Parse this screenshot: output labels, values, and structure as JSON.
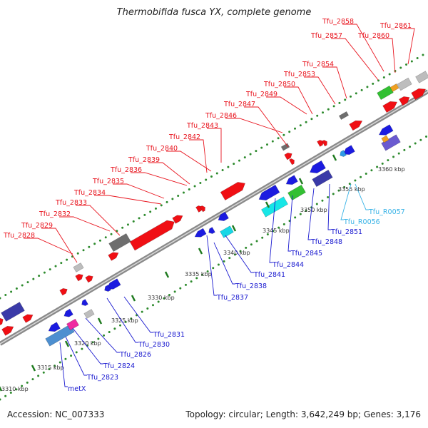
{
  "title": "Thermobifida fusca YX, complete genome",
  "footer": {
    "accession": "Accession: NC_007333",
    "summary": "Topology: circular; Length: 3,642,249 bp; Genes: 3,176"
  },
  "colors": {
    "forward_label": "#e8141e",
    "reverse_label": "#1a1ad0",
    "rna_label": "#36b2e6",
    "dots": "#2d8a2d",
    "tick": "#1f7a1f",
    "backbone": "#8a8a8a"
  },
  "ticks": [
    {
      "label": "3310 kbp"
    },
    {
      "label": "3315 kbp"
    },
    {
      "label": "3320 kbp"
    },
    {
      "label": "3325 kbp"
    },
    {
      "label": "3330 kbp"
    },
    {
      "label": "3335 kbp"
    },
    {
      "label": "3340 kbp"
    },
    {
      "label": "3345 kbp"
    },
    {
      "label": "3350 kbp"
    },
    {
      "label": "3355 kbp"
    },
    {
      "label": "3360 kbp"
    }
  ],
  "forward_genes": [
    {
      "label": "Tfu_2828"
    },
    {
      "label": "Tfu_2829"
    },
    {
      "label": "Tfu_2832"
    },
    {
      "label": "Tfu_2833"
    },
    {
      "label": "Tfu_2834"
    },
    {
      "label": "Tfu_2835"
    },
    {
      "label": "Tfu_2836"
    },
    {
      "label": "Tfu_2839"
    },
    {
      "label": "Tfu_2840"
    },
    {
      "label": "Tfu_2842"
    },
    {
      "label": "Tfu_2843"
    },
    {
      "label": "Tfu_2846"
    },
    {
      "label": "Tfu_2847"
    },
    {
      "label": "Tfu_2849"
    },
    {
      "label": "Tfu_2850"
    },
    {
      "label": "Tfu_2853"
    },
    {
      "label": "Tfu_2854"
    },
    {
      "label": "Tfu_2857"
    },
    {
      "label": "Tfu_2858"
    },
    {
      "label": "Tfu_2860"
    },
    {
      "label": "Tfu_2861"
    }
  ],
  "reverse_genes": [
    {
      "label": "metX"
    },
    {
      "label": "Tfu_2823"
    },
    {
      "label": "Tfu_2824"
    },
    {
      "label": "Tfu_2826"
    },
    {
      "label": "Tfu_2830"
    },
    {
      "label": "Tfu_2831"
    },
    {
      "label": "Tfu_2837"
    },
    {
      "label": "Tfu_2838"
    },
    {
      "label": "Tfu_2841"
    },
    {
      "label": "Tfu_2844"
    },
    {
      "label": "Tfu_2845"
    },
    {
      "label": "Tfu_2848"
    },
    {
      "label": "Tfu_2851"
    },
    {
      "label": "Tfu_R0056",
      "rna": true
    },
    {
      "label": "Tfu_R0057",
      "rna": true
    }
  ]
}
